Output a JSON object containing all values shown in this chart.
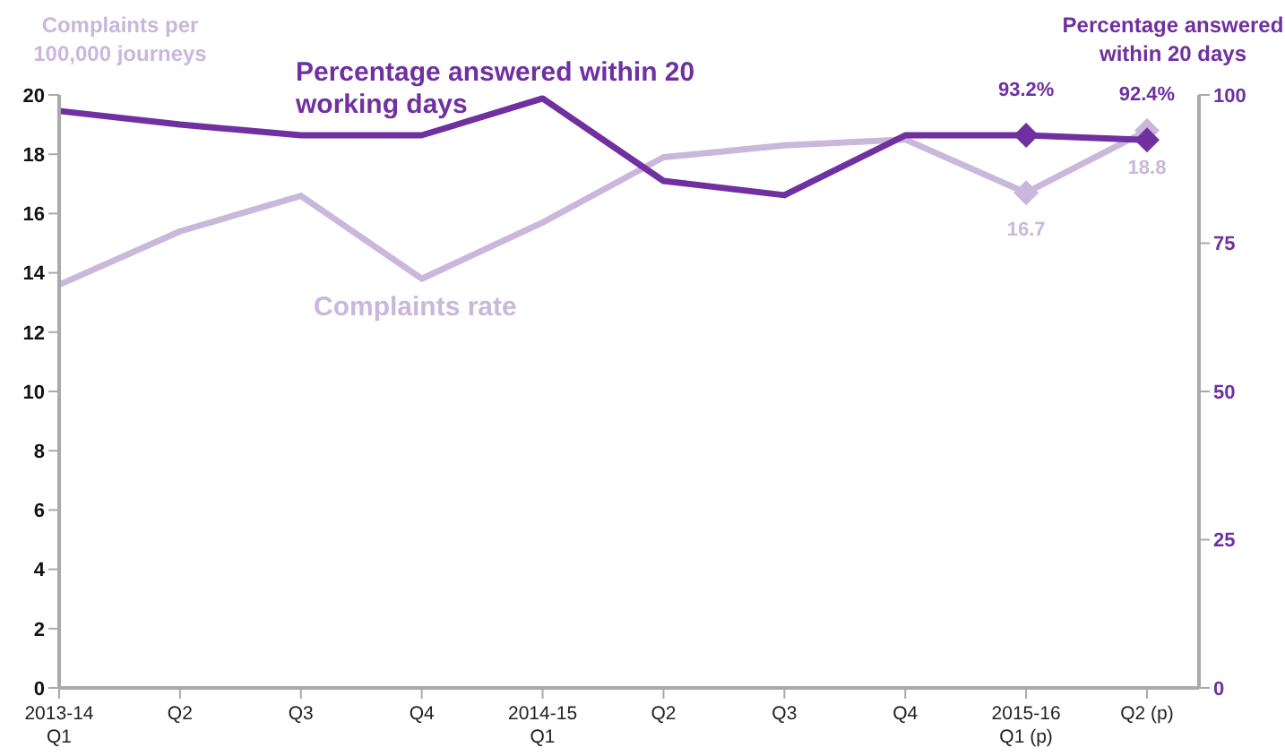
{
  "chart_data": {
    "type": "line",
    "ylabel": "Complaints per 100,000 journeys",
    "y2label": "Percentage answered within 20 days",
    "categories": [
      "2013-14 Q1",
      "Q2",
      "Q3",
      "Q4",
      "2014-15 Q1",
      "Q2",
      "Q3",
      "Q4",
      "2015-16 Q1 (p)",
      "Q2 (p)"
    ],
    "series": [
      {
        "name": "Complaints rate",
        "color": "#c9b8dc",
        "values": [
          13.6,
          15.4,
          16.6,
          13.8,
          15.7,
          17.9,
          18.3,
          18.5,
          16.7,
          18.8
        ],
        "value_labels": [
          null,
          null,
          null,
          null,
          null,
          null,
          null,
          null,
          "16.7",
          "18.8"
        ]
      },
      {
        "name": "Percentage answered within 20 working days",
        "color": "#7030a0",
        "axis": "y2",
        "values": [
          97.3,
          95.0,
          93.2,
          93.2,
          99.4,
          85.5,
          83.1,
          93.2,
          93.2,
          92.4
        ],
        "value_labels": [
          null,
          null,
          null,
          null,
          null,
          null,
          null,
          null,
          "93.2%",
          "92.4%"
        ]
      }
    ],
    "ylim": [
      0,
      20
    ],
    "yticks": [
      0,
      2,
      4,
      6,
      8,
      10,
      12,
      14,
      16,
      18,
      20
    ],
    "y2lim": [
      0,
      100
    ],
    "y2ticks": [
      0,
      25,
      50,
      75,
      100
    ],
    "grid": false,
    "legend": false
  }
}
